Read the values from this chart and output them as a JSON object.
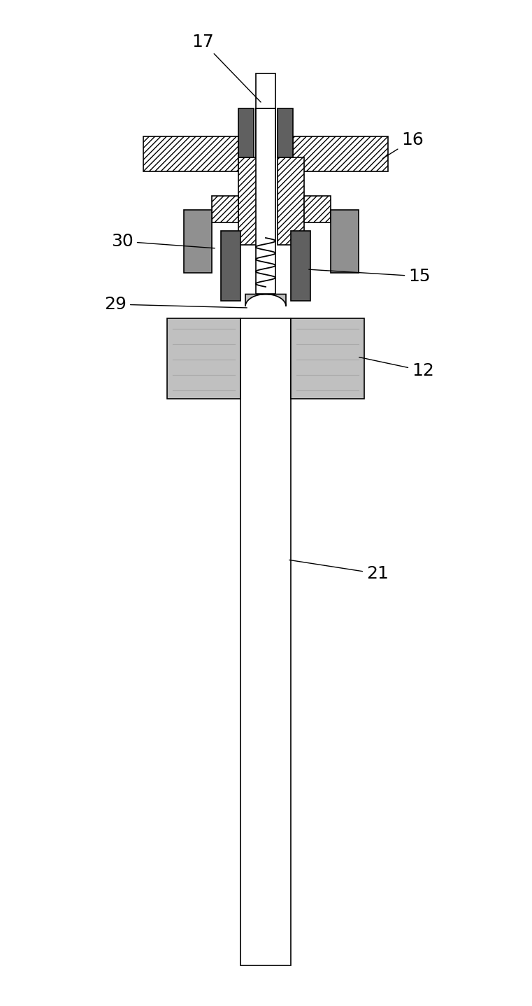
{
  "bg_color": "#ffffff",
  "fig_width": 7.61,
  "fig_height": 14.38,
  "dpi": 100,
  "dark_gray": "#606060",
  "mid_gray": "#909090",
  "light_gray": "#c0c0c0",
  "white": "#ffffff",
  "black": "#000000",
  "lw": 1.2,
  "font_size": 18
}
